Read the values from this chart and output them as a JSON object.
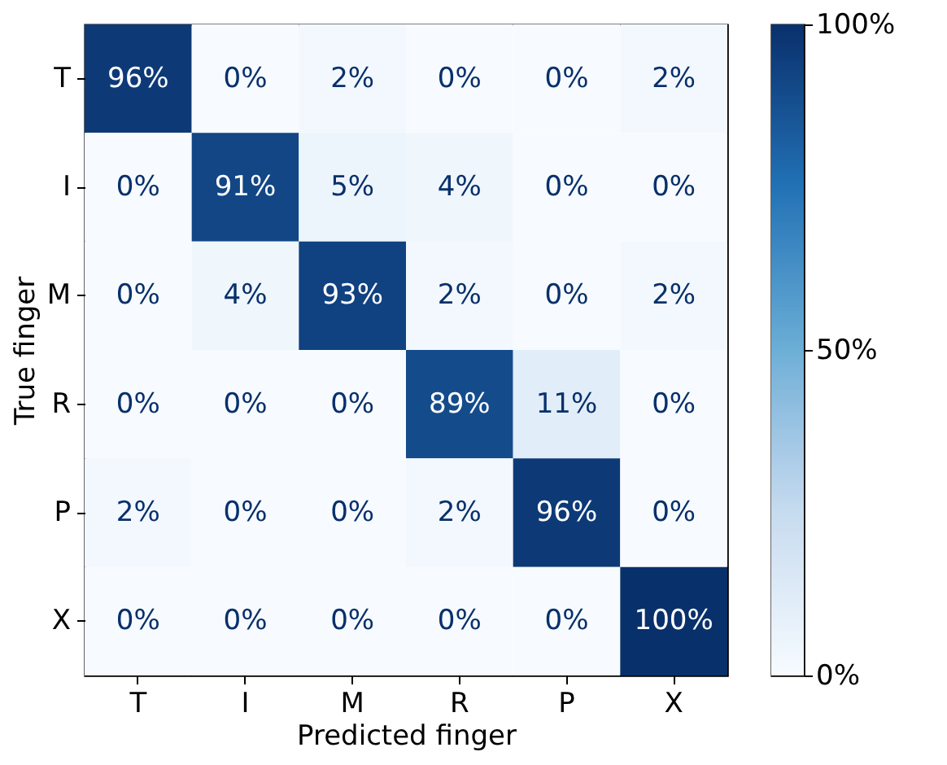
{
  "chart_data": {
    "type": "heatmap",
    "xlabel": "Predicted finger",
    "ylabel": "True finger",
    "categories": [
      "T",
      "I",
      "M",
      "R",
      "P",
      "X"
    ],
    "y_categories": [
      "T",
      "I",
      "M",
      "R",
      "P",
      "X"
    ],
    "cells": [
      [
        96,
        0,
        2,
        0,
        0,
        2
      ],
      [
        0,
        91,
        5,
        4,
        0,
        0
      ],
      [
        0,
        4,
        93,
        2,
        0,
        2
      ],
      [
        0,
        0,
        0,
        89,
        11,
        0
      ],
      [
        2,
        0,
        0,
        2,
        96,
        0
      ],
      [
        0,
        0,
        0,
        0,
        0,
        100
      ]
    ],
    "cell_labels": [
      [
        "96%",
        "0%",
        "2%",
        "0%",
        "0%",
        "2%"
      ],
      [
        "0%",
        "91%",
        "5%",
        "4%",
        "0%",
        "0%"
      ],
      [
        "0%",
        "4%",
        "93%",
        "2%",
        "0%",
        "2%"
      ],
      [
        "0%",
        "0%",
        "0%",
        "89%",
        "11%",
        "0%"
      ],
      [
        "2%",
        "0%",
        "0%",
        "2%",
        "96%",
        "0%"
      ],
      [
        "0%",
        "0%",
        "0%",
        "0%",
        "0%",
        "100%"
      ]
    ],
    "clim": [
      0,
      100
    ],
    "cticks": [
      {
        "value": 0,
        "label": "0%"
      },
      {
        "value": 50,
        "label": "50%"
      },
      {
        "value": 100,
        "label": "100%"
      }
    ]
  }
}
